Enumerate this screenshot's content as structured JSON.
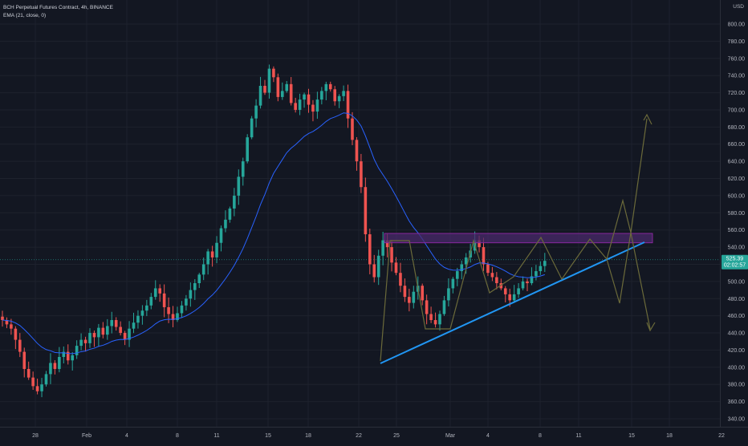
{
  "legend": {
    "symbol": "BCH Perpetual Futures Contract, 4h, BINANCE",
    "indicator": "EMA (21, close, 0)"
  },
  "currency": "USD",
  "colors": {
    "background": "#131722",
    "up_candle": "#26a69a",
    "down_candle": "#ef5350",
    "ema_line": "#2962ff",
    "trendline": "#2196f3",
    "resistance_zone_fill": "#4a2a6b",
    "resistance_zone_border": "#9c27b0",
    "projection_line": "#6b6a3a",
    "current_price_line": "#26a69a",
    "grid": "#1e222d"
  },
  "price_axis": {
    "ticks": [
      "800.00",
      "780.00",
      "760.00",
      "740.00",
      "720.00",
      "700.00",
      "680.00",
      "660.00",
      "640.00",
      "620.00",
      "600.00",
      "580.00",
      "560.00",
      "540.00",
      "520.00",
      "500.00",
      "480.00",
      "460.00",
      "440.00",
      "420.00",
      "400.00",
      "380.00",
      "360.00",
      "340.00"
    ],
    "current_price": "525.39",
    "countdown": "02:02:57"
  },
  "time_axis": {
    "ticks": [
      "28",
      "Feb",
      "4",
      "8",
      "11",
      "15",
      "18",
      "22",
      "25",
      "Mar",
      "4",
      "8",
      "11",
      "15",
      "18",
      "22"
    ]
  },
  "chart_data": {
    "type": "candlestick",
    "title": "BCH Perpetual Futures Contract, 4h, BINANCE",
    "ylim": [
      330,
      810
    ],
    "key_levels": {
      "resistance_zone": [
        545,
        556
      ],
      "trendline_start": [
        405,
        "Feb 23"
      ],
      "trendline_end": [
        545,
        "Mar 16"
      ],
      "all_time_swing_high": 775,
      "swing_low": 370
    },
    "price_path_closes": [
      455,
      450,
      445,
      432,
      418,
      398,
      388,
      378,
      372,
      380,
      392,
      405,
      398,
      412,
      418,
      408,
      414,
      425,
      432,
      428,
      440,
      435,
      446,
      438,
      448,
      455,
      447,
      440,
      432,
      445,
      452,
      460,
      466,
      472,
      482,
      492,
      486,
      470,
      462,
      455,
      463,
      472,
      480,
      490,
      498,
      508,
      520,
      535,
      528,
      545,
      562,
      572,
      585,
      600,
      622,
      640,
      668,
      690,
      705,
      728,
      720,
      748,
      738,
      715,
      722,
      730,
      708,
      700,
      712,
      718,
      706,
      698,
      712,
      722,
      730,
      724,
      710,
      716,
      722,
      690,
      665,
      640,
      610,
      555,
      520,
      505,
      530,
      548,
      540,
      522,
      510,
      495,
      482,
      475,
      488,
      495,
      478,
      462,
      455,
      450,
      462,
      478,
      492,
      503,
      512,
      520,
      528,
      536,
      548,
      540,
      520,
      510,
      505,
      498,
      492,
      485,
      478,
      485,
      492,
      500,
      498,
      506,
      512,
      518,
      524
    ]
  }
}
